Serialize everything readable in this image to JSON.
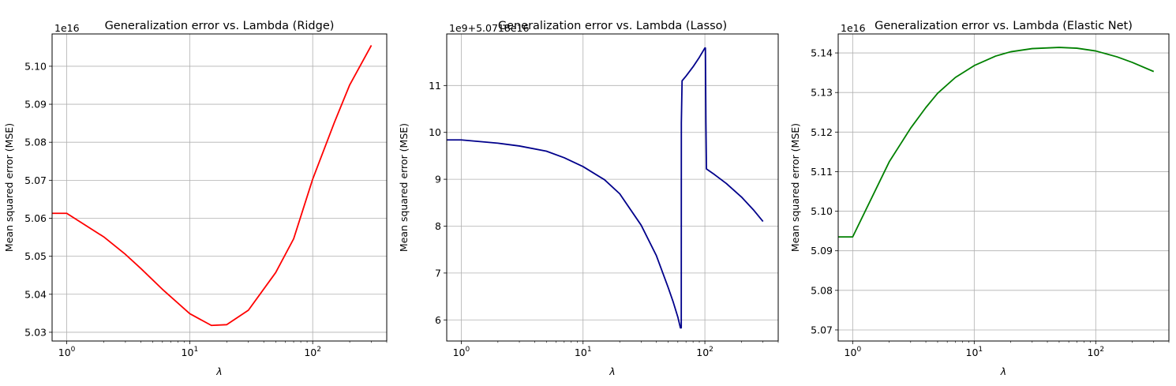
{
  "chart_data": [
    {
      "type": "line",
      "title": "Generalization error vs. Lambda (Ridge)",
      "xlabel": "λ",
      "ylabel": "Mean squared error (MSE)",
      "x_scale": "log",
      "xlim": [
        0.76,
        400
      ],
      "x_ticks": [
        {
          "value": 1,
          "base": "10",
          "exp": "0"
        },
        {
          "value": 10,
          "base": "10",
          "exp": "1"
        },
        {
          "value": 100,
          "base": "10",
          "exp": "2"
        }
      ],
      "y_offset_text": "1e16",
      "y_tick_values": [
        5.03,
        5.04,
        5.05,
        5.06,
        5.07,
        5.08,
        5.09,
        5.1
      ],
      "y_tick_labels": [
        "5.03",
        "5.04",
        "5.05",
        "5.06",
        "5.07",
        "5.08",
        "5.09",
        "5.10"
      ],
      "ylim": [
        5.0277,
        5.1085
      ],
      "grid": true,
      "color": "#ff0000",
      "series": [
        {
          "x": [
            0.76,
            1,
            2,
            3,
            4,
            6,
            10,
            15,
            20,
            30,
            50,
            70,
            100,
            150,
            200,
            300
          ],
          "values": [
            5.0613,
            5.0613,
            5.0551,
            5.0505,
            5.0468,
            5.0413,
            5.0349,
            5.0318,
            5.032,
            5.0358,
            5.0457,
            5.0546,
            5.0703,
            5.0852,
            5.0951,
            5.1055
          ]
        }
      ]
    },
    {
      "type": "line",
      "title": "Generalization error vs. Lambda (Lasso)",
      "xlabel": "λ",
      "ylabel": "Mean squared error (MSE)",
      "x_scale": "log",
      "xlim": [
        0.76,
        400
      ],
      "x_ticks": [
        {
          "value": 1,
          "base": "10",
          "exp": "0"
        },
        {
          "value": 10,
          "base": "10",
          "exp": "1"
        },
        {
          "value": 100,
          "base": "10",
          "exp": "2"
        }
      ],
      "y_offset_text": "1e9+5.0718e16",
      "y_tick_values": [
        6,
        7,
        8,
        9,
        10,
        11
      ],
      "y_tick_labels": [
        "6",
        "7",
        "8",
        "9",
        "10",
        "11"
      ],
      "ylim": [
        5.55,
        12.1
      ],
      "grid": true,
      "color": "#00008b",
      "series": [
        {
          "x": [
            0.76,
            1,
            2,
            3,
            5,
            7,
            10,
            15,
            20,
            30,
            40,
            50,
            55,
            60,
            63,
            64,
            64.1,
            65,
            70,
            80,
            90,
            100,
            101,
            102,
            103,
            120,
            150,
            200,
            250,
            300
          ],
          "values": [
            9.84,
            9.84,
            9.77,
            9.71,
            9.6,
            9.46,
            9.27,
            8.99,
            8.69,
            8.02,
            7.37,
            6.69,
            6.38,
            6.06,
            5.83,
            5.83,
            10.2,
            11.1,
            11.2,
            11.4,
            11.6,
            11.8,
            11.8,
            10.2,
            9.22,
            9.1,
            8.91,
            8.62,
            8.35,
            8.1
          ]
        }
      ]
    },
    {
      "type": "line",
      "title": "Generalization error vs. Lambda (Elastic Net)",
      "xlabel": "λ",
      "ylabel": "Mean squared error (MSE)",
      "x_scale": "log",
      "xlim": [
        0.76,
        400
      ],
      "x_ticks": [
        {
          "value": 1,
          "base": "10",
          "exp": "0"
        },
        {
          "value": 10,
          "base": "10",
          "exp": "1"
        },
        {
          "value": 100,
          "base": "10",
          "exp": "2"
        }
      ],
      "y_offset_text": "1e16",
      "y_tick_values": [
        5.07,
        5.08,
        5.09,
        5.1,
        5.11,
        5.12,
        5.13,
        5.14
      ],
      "y_tick_labels": [
        "5.07",
        "5.08",
        "5.09",
        "5.10",
        "5.11",
        "5.12",
        "5.13",
        "5.14"
      ],
      "ylim": [
        5.0672,
        5.1448
      ],
      "grid": true,
      "color": "#008000",
      "series": [
        {
          "x": [
            0.76,
            1,
            2,
            3,
            4,
            5,
            7,
            10,
            15,
            20,
            30,
            50,
            70,
            100,
            150,
            200,
            300
          ],
          "values": [
            5.0935,
            5.0935,
            5.1125,
            5.121,
            5.1262,
            5.1298,
            5.1338,
            5.1368,
            5.1392,
            5.1403,
            5.1411,
            5.1414,
            5.1412,
            5.1405,
            5.139,
            5.1376,
            5.1353
          ]
        }
      ]
    }
  ]
}
